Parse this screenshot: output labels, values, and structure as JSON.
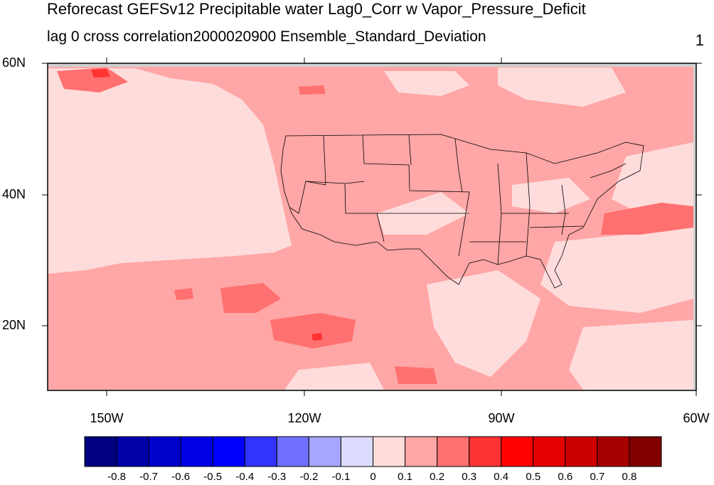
{
  "title": "Reforecast GEFSv12 Precipitable water Lag0_Corr w Vapor_Pressure_Deficit",
  "subtitle": "lag 0 cross correlation2000020900 Ensemble_Standard_Deviation",
  "corner_label": "1",
  "lat_labels": [
    "60N",
    "40N",
    "20N"
  ],
  "lon_labels": [
    "150W",
    "120W",
    "90W",
    "60W"
  ],
  "colorbar": {
    "labels": [
      "-0.8",
      "-0.7",
      "-0.6",
      "-0.5",
      "-0.4",
      "-0.3",
      "-0.2",
      "-0.1",
      "0",
      "0.1",
      "0.2",
      "0.3",
      "0.4",
      "0.5",
      "0.6",
      "0.7",
      "0.8"
    ],
    "colors": [
      "#000080",
      "#0000a8",
      "#0000cd",
      "#0000e6",
      "#0000ff",
      "#3333ff",
      "#7070ff",
      "#a6a6ff",
      "#dcdcff",
      "#ffdcdc",
      "#ffa6a6",
      "#ff7070",
      "#ff3333",
      "#ff0000",
      "#e60000",
      "#cd0000",
      "#a80000",
      "#800000"
    ]
  },
  "map_colors": {
    "c0_1": "#ffdcdc",
    "c1_2": "#ffa6a6",
    "c2_3": "#ff7070",
    "c3_4": "#ff3333",
    "missing": "#cfcfcf",
    "border": "#000000"
  }
}
